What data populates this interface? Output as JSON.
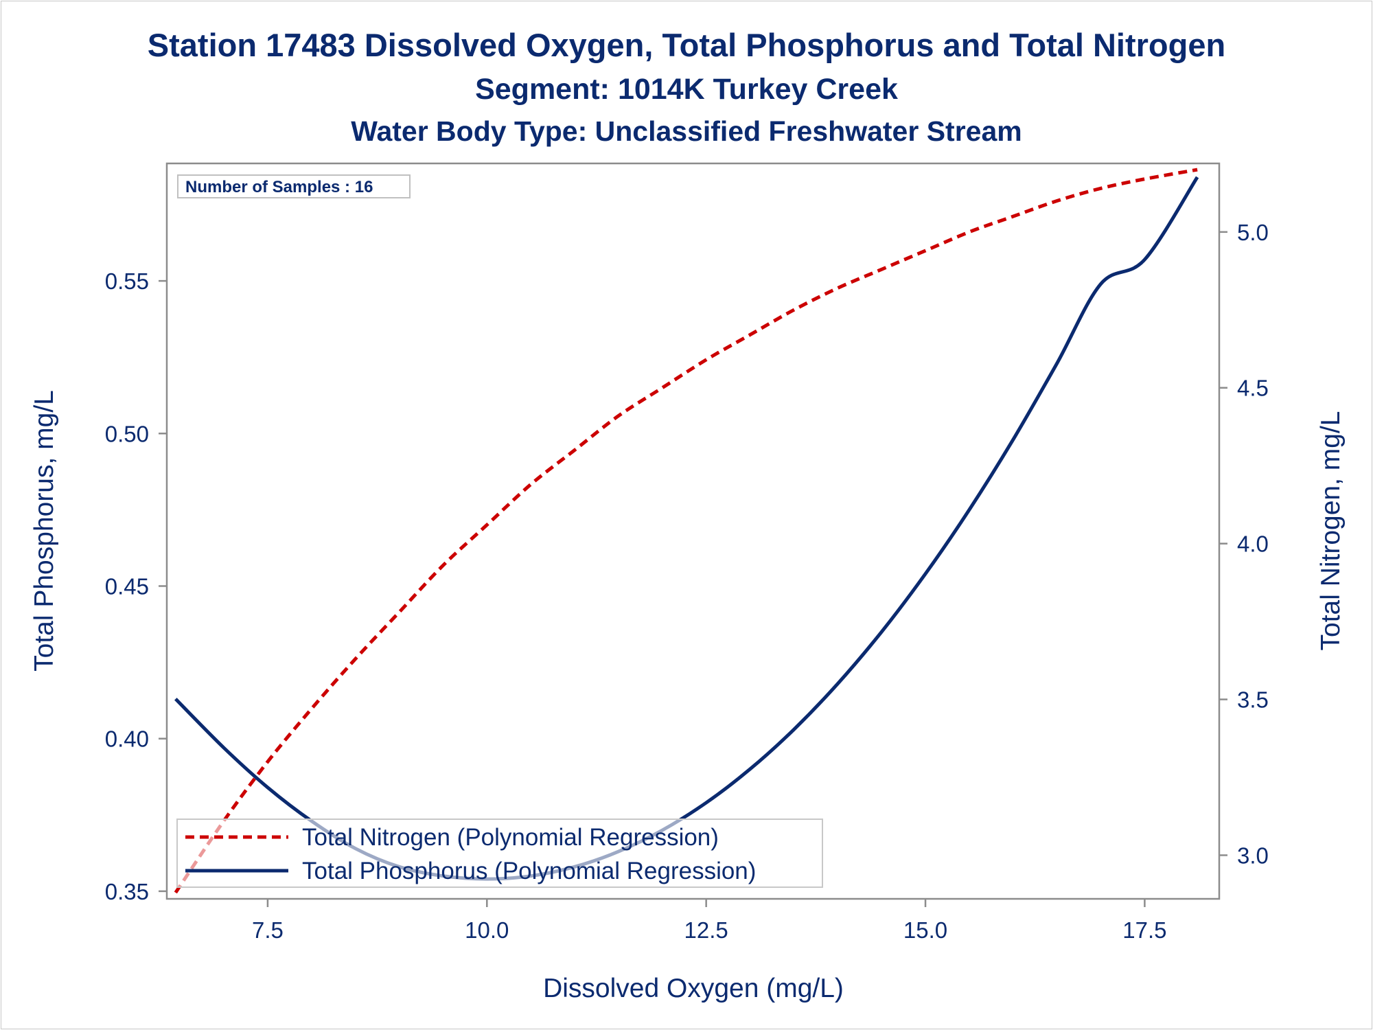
{
  "colors": {
    "text": "#0b2a6f",
    "nitrogen": "#cc0000",
    "phosphorus": "#0b2a6f",
    "axis": "#8c8c8c"
  },
  "chart_data": {
    "type": "line",
    "title": "Station 17483  Dissolved Oxygen, Total Phosphorus and Total Nitrogen",
    "subtitle": "Segment: 1014K  Turkey Creek",
    "subtitle2": "Water Body Type: Unclassified Freshwater Stream",
    "xlabel": "Dissolved Oxygen (mg/L)",
    "ylabel_left": "Total Phosphorus, mg/L",
    "ylabel_right": "Total Nitrogen, mg/L",
    "xlim": [
      6.35,
      18.35
    ],
    "ylim_left": [
      0.3475,
      0.5885
    ],
    "ylim_right": [
      2.86,
      5.22
    ],
    "xticks": [
      "7.5",
      "10.0",
      "12.5",
      "15.0",
      "17.5"
    ],
    "yticks_left": [
      "0.35",
      "0.40",
      "0.45",
      "0.50",
      "0.55"
    ],
    "yticks_right": [
      "3.0",
      "3.5",
      "4.0",
      "4.5",
      "5.0"
    ],
    "inset_label": "Number of Samples : 16",
    "legend_placement": "bottom-left",
    "grid": false,
    "series": [
      {
        "name": "Total Nitrogen (Polynomial Regression)",
        "axis": "right",
        "style": "dashed",
        "x": [
          6.45,
          7.0,
          7.5,
          8.0,
          8.5,
          9.0,
          9.5,
          10.0,
          10.5,
          11.0,
          11.5,
          12.0,
          12.5,
          13.0,
          13.5,
          14.0,
          14.5,
          15.0,
          15.5,
          16.0,
          16.5,
          17.0,
          17.5,
          18.1
        ],
        "y": [
          2.88,
          3.11,
          3.3,
          3.47,
          3.63,
          3.78,
          3.93,
          4.06,
          4.19,
          4.3,
          4.41,
          4.5,
          4.59,
          4.67,
          4.75,
          4.82,
          4.88,
          4.94,
          5.0,
          5.05,
          5.1,
          5.14,
          5.17,
          5.2
        ]
      },
      {
        "name": "Total Phosphorus (Polynomial Regression)",
        "axis": "left",
        "style": "solid",
        "x": [
          6.45,
          7.0,
          7.5,
          8.0,
          8.5,
          9.0,
          9.5,
          10.0,
          10.5,
          11.0,
          11.5,
          12.0,
          12.5,
          13.0,
          13.5,
          14.0,
          14.5,
          15.0,
          15.5,
          16.0,
          16.5,
          17.0,
          17.5,
          18.1
        ],
        "y": [
          0.413,
          0.397,
          0.384,
          0.373,
          0.364,
          0.358,
          0.355,
          0.354,
          0.355,
          0.358,
          0.363,
          0.37,
          0.379,
          0.39,
          0.403,
          0.418,
          0.435,
          0.454,
          0.475,
          0.498,
          0.523,
          0.549,
          0.557,
          0.584
        ]
      }
    ]
  }
}
